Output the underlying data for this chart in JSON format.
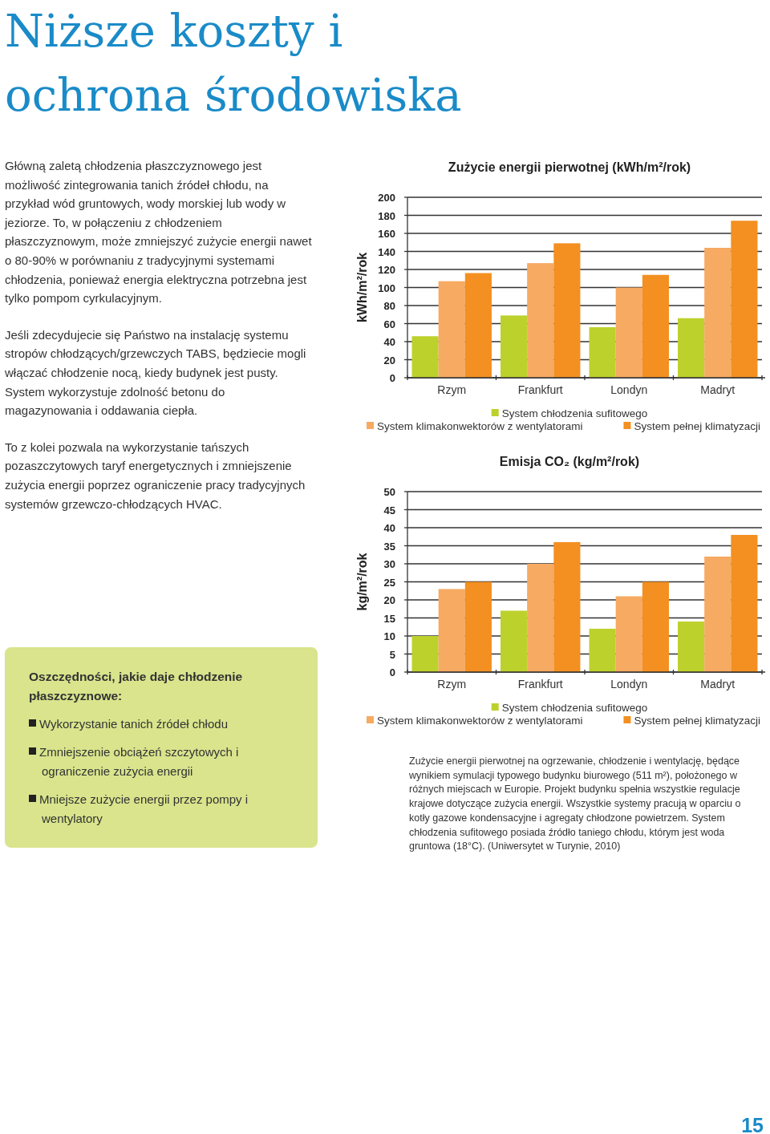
{
  "chart_data": [
    {
      "type": "other",
      "title": "Niższe koszty i ochrona środowiska",
      "annotations": [
        "Główną zaletą chłodzenia płaszczyznowego jest możliwość zintegrowania tanich źródeł chłodu, na przykład wód gruntowych, wody morskiej lub wody w jeziorze. To, w połączeniu z chłodzeniem płaszczyznowym, może zmniejszyć zużycie energii nawet o 80-90% w porównaniu z tradycyjnymi systemami chłodzenia, ponieważ energia elektryczna potrzebna jest tylko pompom cyrkulacyjnym.",
        "Jeśli zdecydujecie się Państwo na instalację systemu stropów chłodzących/grzewczych TABS, będziecie mogli włączać chłodzenie nocą, kiedy budynek jest pusty. System wykorzystuje zdolność betonu do magazynowania i oddawania ciepła.",
        "To z kolei pozwala na wykorzystanie tańszych pozaszczytowych taryf energetycznych i zmniejszenie zużycia energii poprzez ograniczenie pracy tradycyjnych systemów grzewczo-chłodzących HVAC."
      ]
    },
    {
      "type": "other",
      "title": "Oszczędności, jakie daje chłodzenie płaszczyznowe:",
      "annotations": [
        "Wykorzystanie tanich źródeł chłodu",
        "Zmniejszenie obciążeń szczytowych i ograniczenie zużycia energii",
        "Mniejsze zużycie energii przez pompy i wentylatory"
      ]
    },
    {
      "type": "bar",
      "title": "Zużycie energii pierwotnej  (kWh/m²/rok)",
      "ylabel": "kWh/m²/rok",
      "categories": [
        "Rzym",
        "Frankfurt",
        "Londyn",
        "Madryt"
      ],
      "series": [
        {
          "name": "System chłodzenia sufitowego",
          "color": "#bdd12c",
          "values": [
            46,
            69,
            56,
            66
          ]
        },
        {
          "name": "System klimakonwektorów z wentylatorami",
          "color": "#f6aa62",
          "values": [
            107,
            127,
            100,
            144
          ]
        },
        {
          "name": "System pełnej klimatyzacji",
          "color": "#f39021",
          "values": [
            116,
            149,
            114,
            174
          ]
        }
      ],
      "ylim": [
        0,
        200
      ],
      "yticks": [
        0,
        20,
        40,
        60,
        80,
        100,
        120,
        140,
        160,
        180,
        200
      ],
      "grid": "y",
      "legend": "bottom"
    },
    {
      "type": "bar",
      "title": "Emisja CO₂ (kg/m²/rok)",
      "ylabel": "kg/m²/rok",
      "categories": [
        "Rzym",
        "Frankfurt",
        "Londyn",
        "Madryt"
      ],
      "series": [
        {
          "name": "System chłodzenia sufitowego",
          "color": "#bdd12c",
          "values": [
            10,
            17,
            12,
            14
          ]
        },
        {
          "name": "System klimakonwektorów z wentylatorami",
          "color": "#f6aa62",
          "values": [
            23,
            30,
            21,
            32
          ]
        },
        {
          "name": "System pełnej klimatyzacji",
          "color": "#f39021",
          "values": [
            25,
            36,
            25,
            38
          ]
        }
      ],
      "ylim": [
        0,
        50
      ],
      "yticks": [
        0,
        5,
        10,
        15,
        20,
        25,
        30,
        35,
        40,
        45,
        50
      ],
      "grid": "y",
      "legend": "bottom",
      "annotations": [
        "Zużycie energii pierwotnej na ogrzewanie, chłodzenie i wentylację, będące wynikiem symulacji typowego budynku biurowego (511 m²), położonego w różnych miejscach w Europie. Projekt budynku spełnia wszystkie regulacje krajowe dotyczące zużycia energii. Wszystkie systemy pracują w oparciu o kotły gazowe kondensacyjne i agregaty chłodzone powietrzem. System chłodzenia sufitowego posiada źródło taniego chłodu, którym jest woda gruntowa (18°C). (Uniwersytet w Turynie, 2010)",
        "15"
      ]
    }
  ]
}
